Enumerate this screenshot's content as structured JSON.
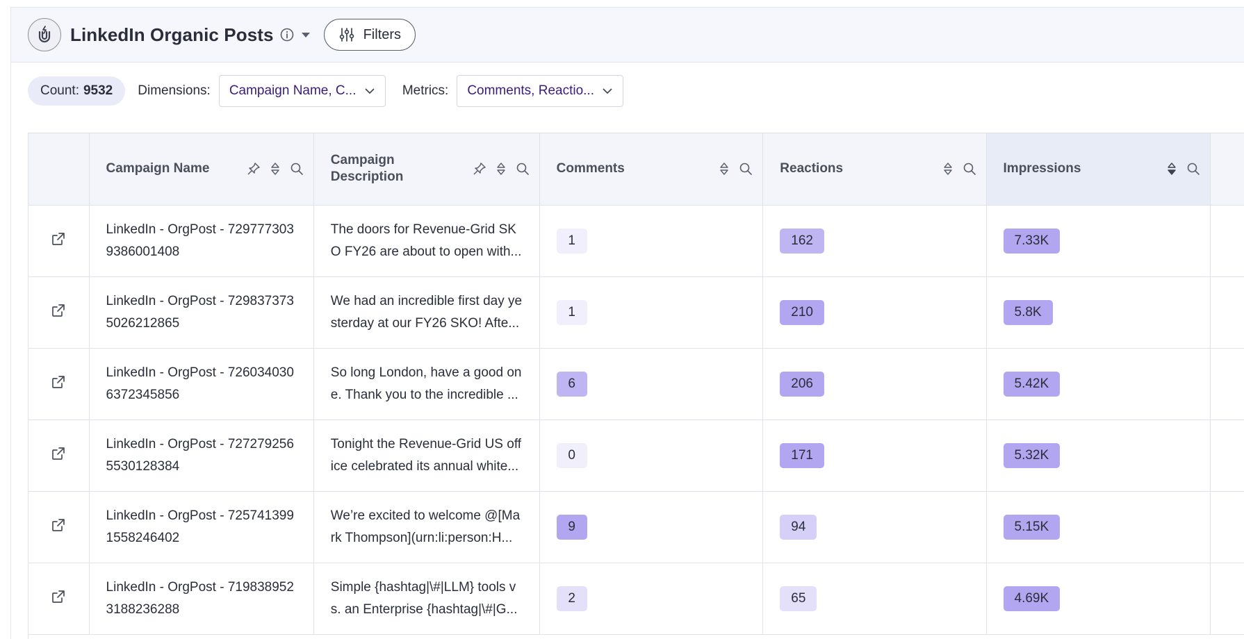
{
  "header": {
    "title": "LinkedIn Organic Posts",
    "filters_label": "Filters"
  },
  "toolbar": {
    "count_label": "Count:",
    "count_value": "9532",
    "dimensions_label": "Dimensions:",
    "dimensions_value": "Campaign Name, C...",
    "metrics_label": "Metrics:",
    "metrics_value": "Comments, Reactio..."
  },
  "table": {
    "columns": [
      {
        "label": "Campaign Name"
      },
      {
        "label": "Campaign Description"
      },
      {
        "label": "Comments"
      },
      {
        "label": "Reactions"
      },
      {
        "label": "Impressions"
      }
    ],
    "rows": [
      {
        "name": "LinkedIn - OrgPost - 7297773039386001408",
        "description": "The doors for Revenue-Grid SKO FY26 are about to open with...",
        "comments": "1",
        "reactions": "162",
        "impressions": "7.33K"
      },
      {
        "name": "LinkedIn - OrgPost - 7298373735026212865",
        "description": "We had an incredible first day yesterday at our FY26 SKO! Afte...",
        "comments": "1",
        "reactions": "210",
        "impressions": "5.8K"
      },
      {
        "name": "LinkedIn - OrgPost - 7260340306372345856",
        "description": "So long London, have a good one. Thank you to the incredible ...",
        "comments": "6",
        "reactions": "206",
        "impressions": "5.42K"
      },
      {
        "name": "LinkedIn - OrgPost - 7272792565530128384",
        "description": "Tonight the Revenue-Grid US office celebrated its annual white...",
        "comments": "0",
        "reactions": "171",
        "impressions": "5.32K"
      },
      {
        "name": "LinkedIn - OrgPost - 7257413991558246402",
        "description": "We’re excited to welcome @[Mark Thompson](urn:li:person:H...",
        "comments": "9",
        "reactions": "94",
        "impressions": "5.15K"
      },
      {
        "name": "LinkedIn - OrgPost - 7198389523188236288",
        "description": "Simple {hashtag|\\#|LLM} tools vs. an Enterprise {hashtag|\\#|G...",
        "comments": "2",
        "reactions": "65",
        "impressions": "4.69K"
      }
    ]
  },
  "colors": {
    "accent_text": "#3b1c7a",
    "pill_levels": [
      "#f1effc",
      "#e4e0fa",
      "#d6d0f8",
      "#bfb5f3",
      "#b2a6f0"
    ]
  }
}
